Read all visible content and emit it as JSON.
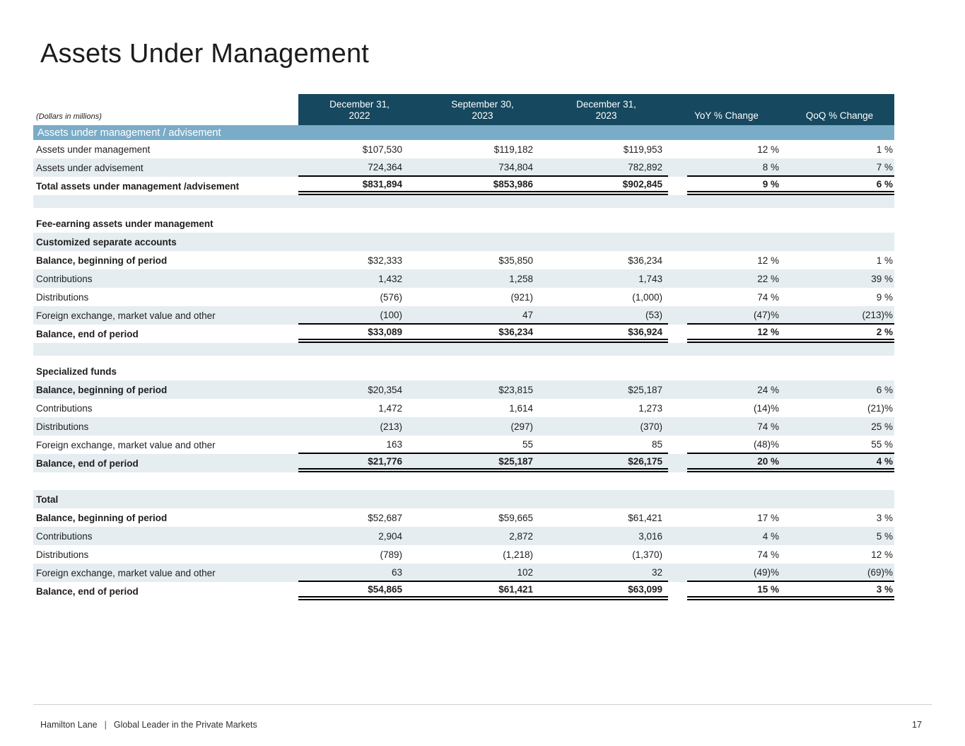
{
  "page": {
    "title": "Assets Under Management",
    "units_note": "(Dollars in millions)",
    "footer": {
      "brand": "Hamilton Lane",
      "separator": "|",
      "tagline": "Global Leader in the Private Markets",
      "page_number": "17"
    }
  },
  "colors": {
    "header_bg": "#16485f",
    "band_bg": "#7aacc8",
    "alt_row_bg": "#e5edf1"
  },
  "table": {
    "columns": [
      {
        "line1": "December 31,",
        "line2": "2022"
      },
      {
        "line1": "September 30,",
        "line2": "2023"
      },
      {
        "line1": "December 31,",
        "line2": "2023"
      },
      {
        "label": "YoY % Change"
      },
      {
        "label": "QoQ % Change"
      }
    ],
    "rows": [
      {
        "type": "band",
        "label": "Assets under management / advisement"
      },
      {
        "type": "data",
        "bg": "white",
        "label": "Assets under management",
        "values": [
          "$107,530",
          "$119,182",
          "$119,953"
        ],
        "yoy": "12 %",
        "qoq": "1 %"
      },
      {
        "type": "data",
        "bg": "alt",
        "border": "single",
        "label": "Assets under advisement",
        "values": [
          "724,364",
          "734,804",
          "782,892"
        ],
        "yoy": "8 %",
        "qoq": "7 %"
      },
      {
        "type": "data",
        "bg": "white",
        "label_bold": true,
        "values_bold": true,
        "border": "double",
        "label": "Total assets under management /advisement",
        "values": [
          "$831,894",
          "$853,986",
          "$902,845"
        ],
        "yoy": "9 %",
        "qoq": "6 %"
      },
      {
        "type": "spacer",
        "bg": "alt",
        "h": 18
      },
      {
        "type": "spacer",
        "bg": "white",
        "h": 9
      },
      {
        "type": "header",
        "bg": "white",
        "label": "Fee-earning assets under management"
      },
      {
        "type": "header",
        "bg": "alt",
        "label": "Customized separate accounts"
      },
      {
        "type": "data",
        "bg": "white",
        "label_bold": true,
        "label": "Balance, beginning of period",
        "values": [
          "$32,333",
          "$35,850",
          "$36,234"
        ],
        "yoy": "12 %",
        "qoq": "1 %"
      },
      {
        "type": "data",
        "bg": "alt",
        "label": "Contributions",
        "values": [
          "1,432",
          "1,258",
          "1,743"
        ],
        "yoy": "22 %",
        "qoq": "39 %"
      },
      {
        "type": "data",
        "bg": "white",
        "label": "Distributions",
        "values": [
          "(576)",
          "(921)",
          "(1,000)"
        ],
        "yoy": "74 %",
        "qoq": "9 %"
      },
      {
        "type": "data",
        "bg": "alt",
        "border": "single",
        "label": "Foreign exchange, market value and other",
        "values": [
          "(100)",
          "47",
          "(53)"
        ],
        "yoy": "(47)%",
        "qoq": "(213)%"
      },
      {
        "type": "data",
        "bg": "white",
        "label_bold": true,
        "values_bold": true,
        "border": "double",
        "label": "Balance, end of period",
        "values": [
          "$33,089",
          "$36,234",
          "$36,924"
        ],
        "yoy": "12 %",
        "qoq": "2 %"
      },
      {
        "type": "spacer",
        "bg": "alt",
        "h": 18
      },
      {
        "type": "spacer",
        "bg": "white",
        "h": 9
      },
      {
        "type": "header",
        "bg": "white",
        "label": "Specialized funds"
      },
      {
        "type": "data",
        "bg": "alt",
        "label_bold": true,
        "label": "Balance, beginning of period",
        "values": [
          "$20,354",
          "$23,815",
          "$25,187"
        ],
        "yoy": "24 %",
        "qoq": "6 %"
      },
      {
        "type": "data",
        "bg": "white",
        "label": "Contributions",
        "values": [
          "1,472",
          "1,614",
          "1,273"
        ],
        "yoy": "(14)%",
        "qoq": "(21)%"
      },
      {
        "type": "data",
        "bg": "alt",
        "label": "Distributions",
        "values": [
          "(213)",
          "(297)",
          "(370)"
        ],
        "yoy": "74 %",
        "qoq": "25 %"
      },
      {
        "type": "data",
        "bg": "white",
        "border": "single",
        "label": "Foreign exchange, market value and other",
        "values": [
          "163",
          "55",
          "85"
        ],
        "yoy": "(48)%",
        "qoq": "55 %"
      },
      {
        "type": "data",
        "bg": "alt",
        "label_bold": true,
        "values_bold": true,
        "border": "double",
        "label": "Balance, end of period",
        "values": [
          "$21,776",
          "$25,187",
          "$26,175"
        ],
        "yoy": "20 %",
        "qoq": "4 %"
      },
      {
        "type": "spacer",
        "bg": "white",
        "h": 25
      },
      {
        "type": "header",
        "bg": "alt",
        "label": "Total"
      },
      {
        "type": "data",
        "bg": "white",
        "label_bold": true,
        "label": "Balance, beginning of period",
        "values": [
          "$52,687",
          "$59,665",
          "$61,421"
        ],
        "yoy": "17 %",
        "qoq": "3 %"
      },
      {
        "type": "data",
        "bg": "alt",
        "label": "Contributions",
        "values": [
          "2,904",
          "2,872",
          "3,016"
        ],
        "yoy": "4 %",
        "qoq": "5 %"
      },
      {
        "type": "data",
        "bg": "white",
        "label": "Distributions",
        "values": [
          "(789)",
          "(1,218)",
          "(1,370)"
        ],
        "yoy": "74 %",
        "qoq": "12 %"
      },
      {
        "type": "data",
        "bg": "alt",
        "border": "single",
        "label": "Foreign exchange, market value and other",
        "values": [
          "63",
          "102",
          "32"
        ],
        "yoy": "(49)%",
        "qoq": "(69)%"
      },
      {
        "type": "data",
        "bg": "white",
        "label_bold": true,
        "values_bold": true,
        "border": "double",
        "label": "Balance, end of period",
        "values": [
          "$54,865",
          "$61,421",
          "$63,099"
        ],
        "yoy": "15 %",
        "qoq": "3 %"
      }
    ]
  }
}
